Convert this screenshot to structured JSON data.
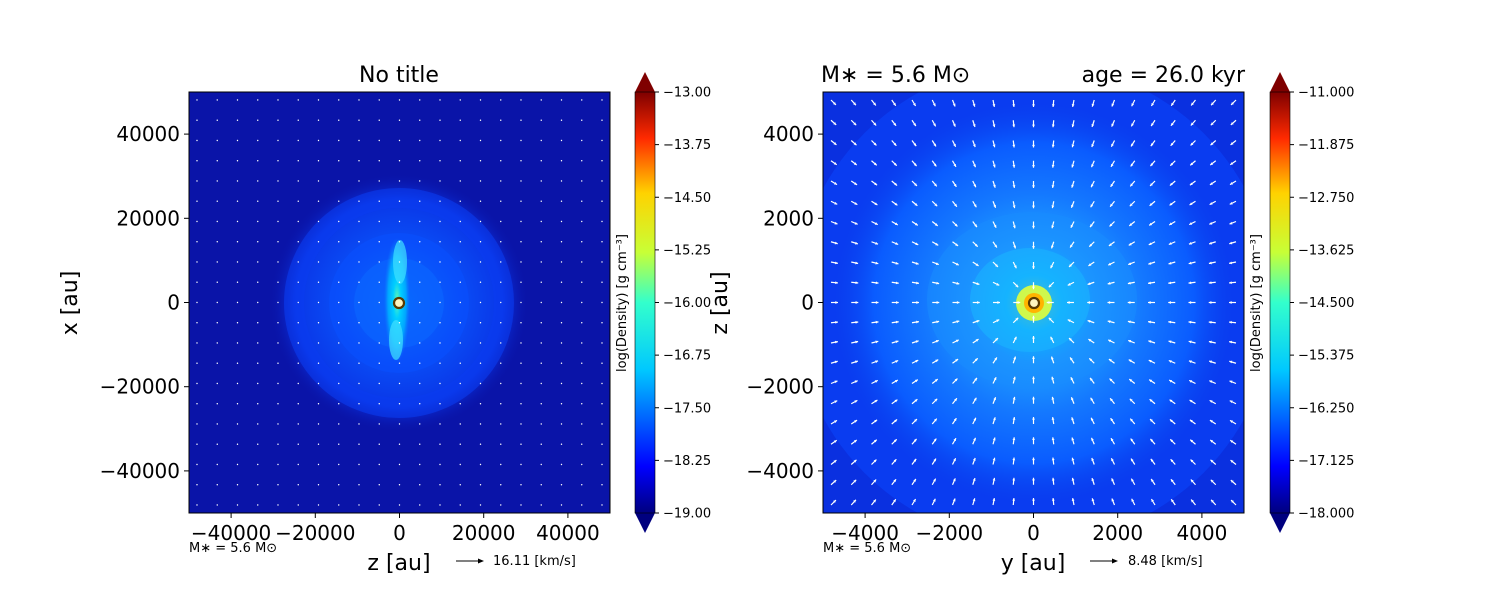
{
  "chart_data": [
    {
      "type": "heatmap",
      "title": "No title",
      "xlabel": "z [au]",
      "ylabel": "x [au]",
      "xlim": [
        -50000,
        50000
      ],
      "ylim": [
        -50000,
        50000
      ],
      "xticks": [
        "−40000",
        "−20000",
        "0",
        "20000",
        "40000"
      ],
      "xtick_values": [
        -40000,
        -20000,
        0,
        20000,
        40000
      ],
      "yticks": [
        "40000",
        "20000",
        "0",
        "−20000",
        "−40000"
      ],
      "ytick_values": [
        40000,
        20000,
        0,
        -20000,
        -40000
      ],
      "colorbar": {
        "label": "log(Density) [g cm⁻³]",
        "min": -19.0,
        "max": -13.0,
        "ticks": [
          "−13.00",
          "−13.75",
          "−14.50",
          "−15.25",
          "−16.00",
          "−16.75",
          "−17.50",
          "−18.25",
          "−19.00"
        ],
        "tick_values": [
          -13.0,
          -13.75,
          -14.5,
          -15.25,
          -16.0,
          -16.75,
          -17.5,
          -18.25,
          -19.0
        ],
        "colormap": "jet"
      },
      "mass_note": "M∗ = 5.6 M⊙",
      "velocity_key": "16.11 [km/s]",
      "arrows": "tiny",
      "grid": false
    },
    {
      "type": "heatmap",
      "title_left": "M∗ = 5.6 M⊙",
      "title_right": "age = 26.0 kyr",
      "xlabel": "y [au]",
      "ylabel": "z [au]",
      "xlim": [
        -5000,
        5000
      ],
      "ylim": [
        -5000,
        5000
      ],
      "xticks": [
        "−4000",
        "−2000",
        "0",
        "2000",
        "4000"
      ],
      "xtick_values": [
        -4000,
        -2000,
        0,
        2000,
        4000
      ],
      "yticks": [
        "4000",
        "2000",
        "0",
        "−2000",
        "−4000"
      ],
      "ytick_values": [
        4000,
        2000,
        0,
        -2000,
        -4000
      ],
      "colorbar": {
        "label": "log(Density) [g cm⁻³]",
        "min": -18.0,
        "max": -11.0,
        "ticks": [
          "−11.000",
          "−11.875",
          "−12.750",
          "−13.625",
          "−14.500",
          "−15.375",
          "−16.250",
          "−17.125",
          "−18.000"
        ],
        "tick_values": [
          -11.0,
          -11.875,
          -12.75,
          -13.625,
          -14.5,
          -15.375,
          -16.25,
          -17.125,
          -18.0
        ],
        "colormap": "jet"
      },
      "mass_note": "M∗ = 5.6 M⊙",
      "velocity_key": "8.48 [km/s]",
      "arrows": "infall",
      "grid": false
    }
  ],
  "colors": {
    "bg_low": "#0a14a8",
    "bg_mid": "#0040ff",
    "arrow": "#ffffff"
  }
}
